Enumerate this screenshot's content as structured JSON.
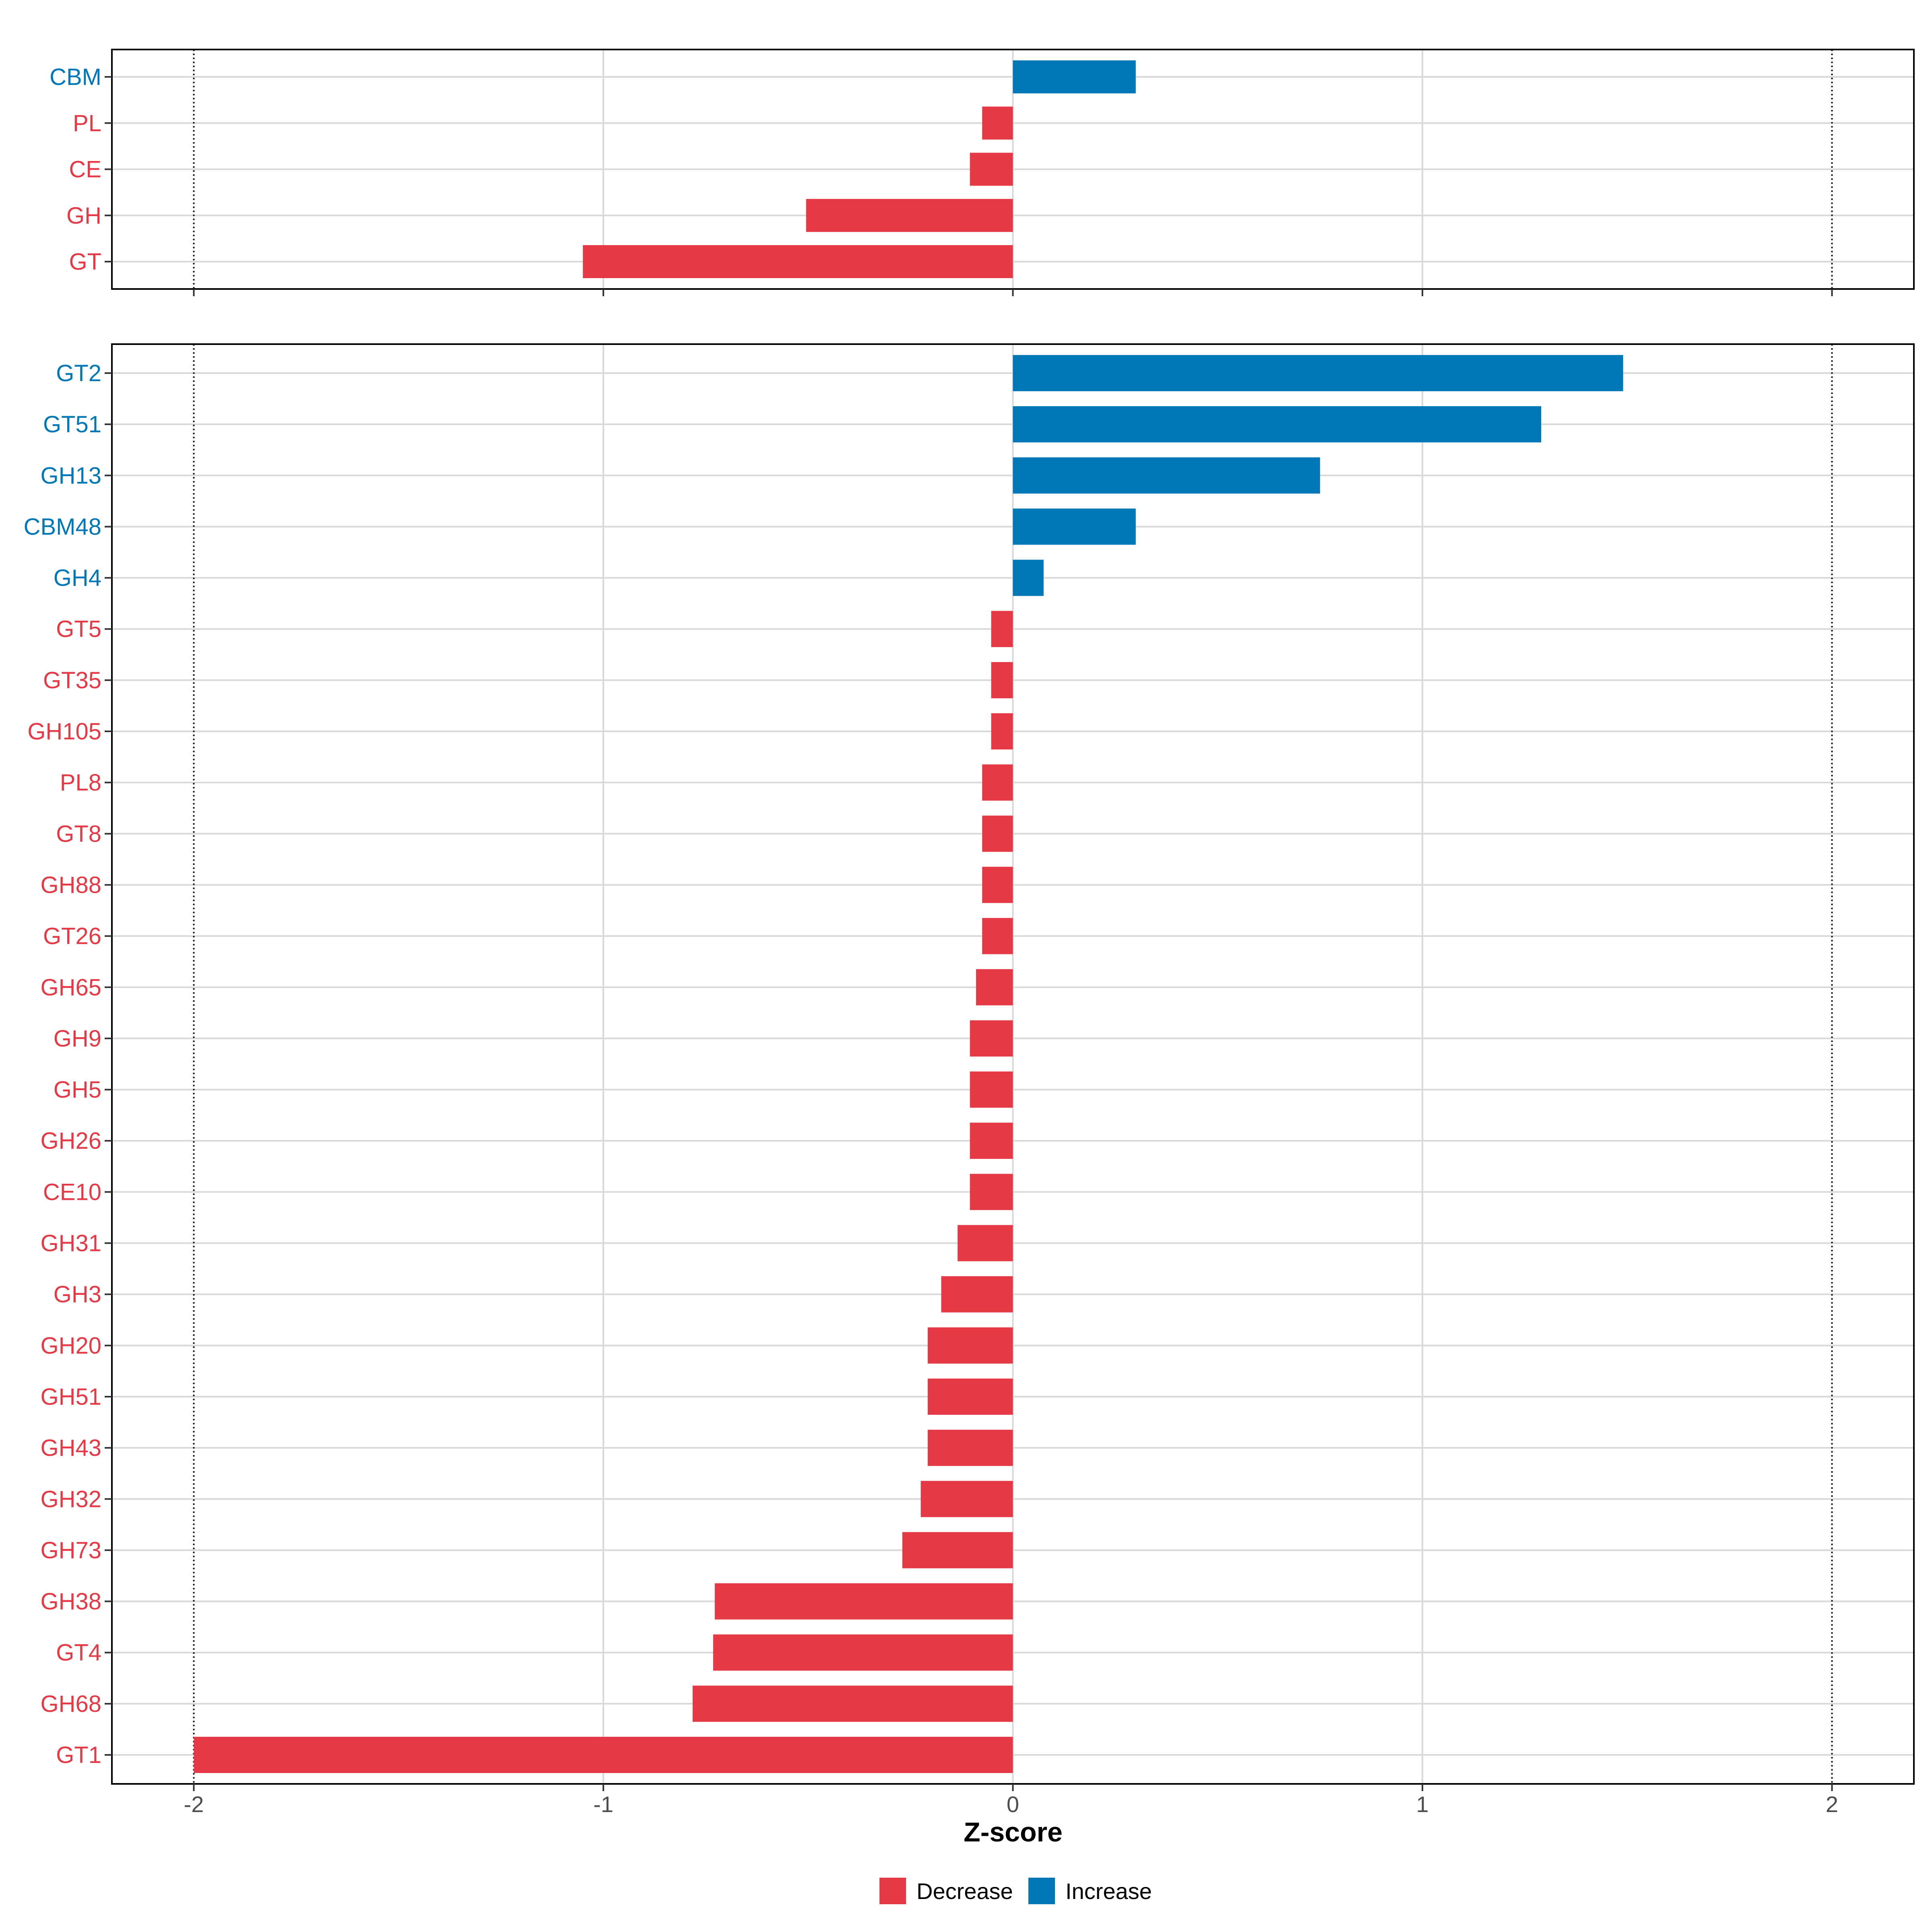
{
  "chart_data": [
    {
      "type": "bar",
      "orientation": "horizontal",
      "panel": "class",
      "categories": [
        "CBM",
        "PL",
        "CE",
        "GH",
        "GT"
      ],
      "values": [
        0.3,
        -0.075,
        -0.105,
        -0.505,
        -1.05
      ],
      "xlim": [
        -2.2,
        2.2
      ],
      "xticks": [
        -2,
        -1,
        0,
        1,
        2
      ],
      "reference_lines": [
        -2,
        2
      ],
      "grid": true
    },
    {
      "type": "bar",
      "orientation": "horizontal",
      "panel": "family",
      "categories": [
        "GT2",
        "GT51",
        "GH13",
        "CBM48",
        "GH4",
        "GT5",
        "GT35",
        "GH105",
        "PL8",
        "GT8",
        "GH88",
        "GT26",
        "GH65",
        "GH9",
        "GH5",
        "GH26",
        "CE10",
        "GH31",
        "GH3",
        "GH20",
        "GH51",
        "GH43",
        "GH32",
        "GH73",
        "GH38",
        "GT4",
        "GH68",
        "GT1"
      ],
      "values": [
        1.49,
        1.29,
        0.75,
        0.3,
        0.075,
        -0.053,
        -0.053,
        -0.053,
        -0.075,
        -0.075,
        -0.075,
        -0.075,
        -0.09,
        -0.105,
        -0.105,
        -0.105,
        -0.105,
        -0.135,
        -0.175,
        -0.208,
        -0.208,
        -0.208,
        -0.225,
        -0.27,
        -0.728,
        -0.732,
        -0.782,
        -2.0
      ],
      "xlim": [
        -2.2,
        2.2
      ],
      "xticks": [
        -2,
        -1,
        0,
        1,
        2
      ],
      "xtick_labels": [
        "-2",
        "-1",
        "0",
        "1",
        "2"
      ],
      "reference_lines": [
        -2,
        2
      ],
      "xlabel": "Z-score",
      "grid": true
    }
  ],
  "legend": {
    "placement": "bottom",
    "items": [
      {
        "label": "Decrease",
        "color": "#E63946"
      },
      {
        "label": "Increase",
        "color": "#0077B6"
      }
    ]
  },
  "colors": {
    "decrease": "#E63946",
    "increase": "#0077B6",
    "grid": "#d9d9d9",
    "tick_text": "#4d4d4d"
  }
}
